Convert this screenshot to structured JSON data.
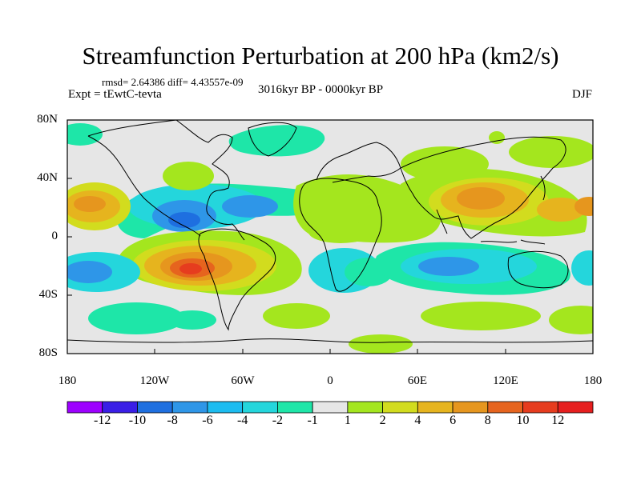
{
  "title": "Streamfunction Perturbation at 200 hPa (km2/s)",
  "stats": "rmsd= 2.64386 diff= 4.43557e-09",
  "experiment": "Expt = tEwtC-tevta",
  "period": "3016kyr BP - 0000kyr BP",
  "season": "DJF",
  "map": {
    "lat_ticks": [
      "80N",
      "40N",
      "0",
      "40S",
      "80S"
    ],
    "lon_ticks": [
      "180",
      "120W",
      "60W",
      "0",
      "60E",
      "120E",
      "180"
    ],
    "ocean_color": "#e6e6e6"
  },
  "colorbar": {
    "labels": [
      "-12",
      "-10",
      "-8",
      "-6",
      "-4",
      "-2",
      "-1",
      "1",
      "2",
      "4",
      "6",
      "8",
      "10",
      "12"
    ],
    "colors": [
      "#9d00ff",
      "#3a1ee6",
      "#1e6fe0",
      "#2e96e8",
      "#1cbcf0",
      "#24d6dc",
      "#1ee6a8",
      "#e6e6e6",
      "#a4e61e",
      "#d2dc1e",
      "#e6b41e",
      "#e6961e",
      "#e6641e",
      "#e63c1e",
      "#e61e1e"
    ]
  }
}
